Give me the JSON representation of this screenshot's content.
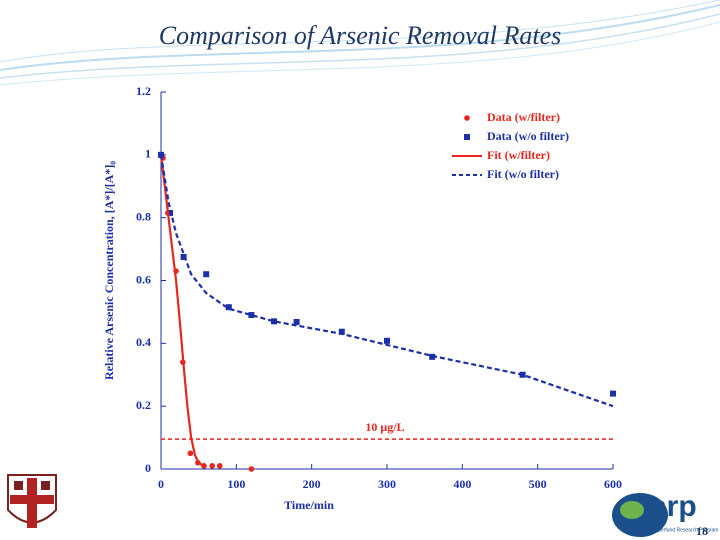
{
  "slide": {
    "title": "Comparison of Arsenic Removal Rates",
    "page_number": "18",
    "logo_text": "srp",
    "logo_caption": "Superfund Research Program"
  },
  "chart_data": {
    "type": "line",
    "x_label": "Time/min",
    "y_label": "Relative Arsenic Concentration, [A*]/[A*]₀",
    "xlim": [
      0,
      600
    ],
    "xticks": [
      0,
      100,
      200,
      300,
      400,
      500,
      600
    ],
    "ylim": [
      0,
      1.2
    ],
    "yticks": [
      0,
      0.2,
      0.4,
      0.6,
      0.8,
      1,
      1.2
    ],
    "series": [
      {
        "name": "Data (w/filter)",
        "color": "#e8251f",
        "marker": "circle",
        "x": [
          2.7,
          9,
          20,
          29,
          39,
          49,
          57,
          68,
          78,
          120
        ],
        "values": [
          0.99,
          0.815,
          0.63,
          0.34,
          0.05,
          0.02,
          0.01,
          0.01,
          0.01,
          0
        ]
      },
      {
        "name": "Data (w/o filter)",
        "color": "#1c2fa8",
        "marker": "square",
        "x": [
          0,
          12,
          30,
          60,
          90,
          120,
          150,
          180,
          240,
          300,
          360,
          480,
          600
        ],
        "values": [
          1.0,
          0.815,
          0.675,
          0.62,
          0.515,
          0.49,
          0.47,
          0.468,
          0.437,
          0.408,
          0.357,
          0.3,
          0.24
        ]
      },
      {
        "name": "Fit (w/filter)",
        "color": "#e8251f",
        "line": "solid",
        "x": [
          0,
          5,
          10,
          15,
          20,
          25,
          30,
          35,
          40,
          45,
          50,
          60
        ],
        "values": [
          1,
          0.9,
          0.8,
          0.7,
          0.6,
          0.47,
          0.33,
          0.2,
          0.1,
          0.045,
          0.02,
          0.005
        ]
      },
      {
        "name": "Fit (w/o filter)",
        "color": "#1c2fa8",
        "line": "dashed",
        "x": [
          0,
          10,
          20,
          40,
          60,
          90,
          150,
          240,
          360,
          480,
          600
        ],
        "values": [
          1,
          0.85,
          0.75,
          0.62,
          0.56,
          0.51,
          0.47,
          0.43,
          0.36,
          0.3,
          0.2
        ]
      }
    ],
    "threshold": {
      "value": 0.095,
      "label": "10 μg/L",
      "color": "#e8251f"
    }
  }
}
